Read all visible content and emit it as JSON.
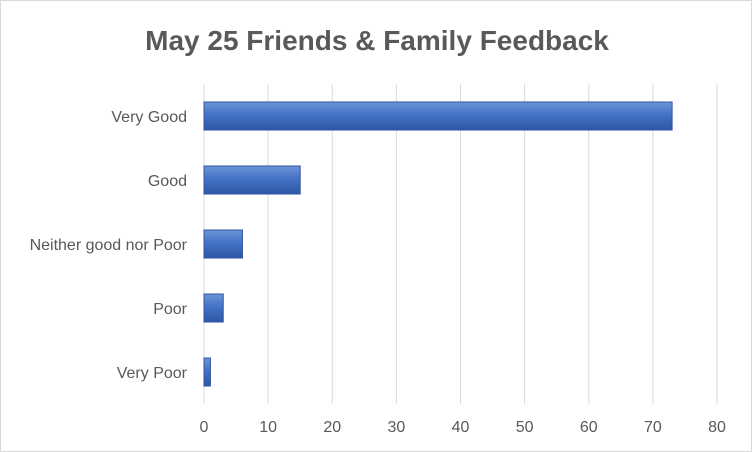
{
  "chart_data": {
    "type": "bar",
    "orientation": "horizontal",
    "title": "May 25 Friends & Family Feedback",
    "xlabel": "",
    "ylabel": "",
    "categories": [
      "Very Good",
      "Good",
      "Neither good nor Poor",
      "Poor",
      "Very Poor"
    ],
    "values": [
      73,
      15,
      6,
      3,
      1
    ],
    "xlim": [
      0,
      80
    ],
    "x_ticks": [
      0,
      10,
      20,
      30,
      40,
      50,
      60,
      70,
      80
    ],
    "grid": "vertical",
    "legend": "none",
    "bar_color": "#4472c4",
    "bar_color_dark": "#2f55a3",
    "grid_color": "#d9d9d9",
    "text_color": "#595959"
  }
}
